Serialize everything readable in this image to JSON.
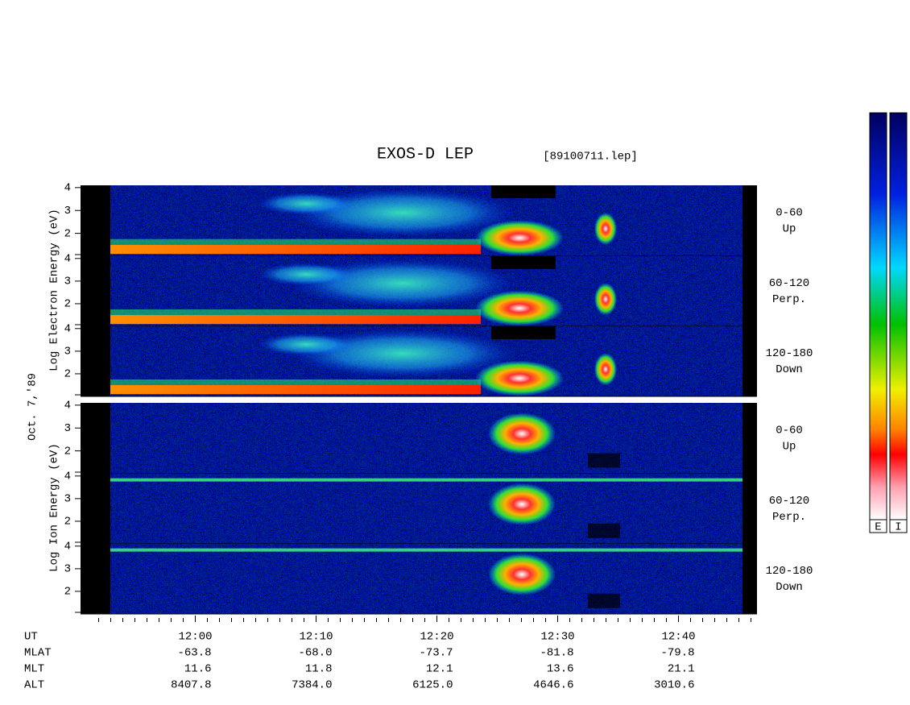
{
  "chart_data": {
    "type": "spectrogram",
    "title": "EXOS-D LEP",
    "file": "[89100711.lep]",
    "date_label": "Oct. 7,'89",
    "groups": [
      {
        "label": "Log  Electron  Energy (eV)"
      },
      {
        "label": "Log   Ion   Energy (eV)"
      }
    ],
    "panels": [
      {
        "angle": "0-60",
        "direction": "Up"
      },
      {
        "angle": "60-120",
        "direction": "Perp."
      },
      {
        "angle": "120-180",
        "direction": "Down"
      },
      {
        "angle": "0-60",
        "direction": "Up"
      },
      {
        "angle": "60-120",
        "direction": "Perp."
      },
      {
        "angle": "120-180",
        "direction": "Down"
      }
    ],
    "ylim": [
      1,
      4.1
    ],
    "yticks": [
      2,
      3,
      4
    ],
    "xlim": [
      710.5,
      766.5
    ],
    "xticks": [
      {
        "value": 720,
        "label": "12:00"
      },
      {
        "value": 730,
        "label": "12:10"
      },
      {
        "value": 740,
        "label": "12:20"
      },
      {
        "value": 750,
        "label": "12:30"
      },
      {
        "value": 760,
        "label": "12:40"
      }
    ],
    "xminorticks": [
      712,
      713,
      714,
      715,
      716,
      717,
      718,
      719,
      721,
      722,
      723,
      724,
      725,
      726,
      727,
      728,
      729,
      731,
      732,
      733,
      734,
      735,
      736,
      737,
      738,
      739,
      741,
      742,
      743,
      744,
      745,
      746,
      747,
      748,
      749,
      751,
      752,
      753,
      754,
      755,
      756,
      757,
      758,
      759,
      761,
      762,
      763,
      764,
      765,
      766
    ],
    "ephemeris": {
      "labels": [
        "UT",
        "MLAT",
        "MLT",
        "ALT"
      ],
      "rows": [
        [
          "-63.8",
          "-68.0",
          "-73.7",
          "-81.8",
          "-79.8"
        ],
        [
          "11.6",
          "11.8",
          "12.1",
          "13.6",
          "21.1"
        ],
        [
          "8407.8",
          "7384.0",
          "6125.0",
          "4646.6",
          "3010.6"
        ]
      ]
    },
    "colorbar": {
      "labels": [
        "E",
        "I"
      ]
    }
  }
}
